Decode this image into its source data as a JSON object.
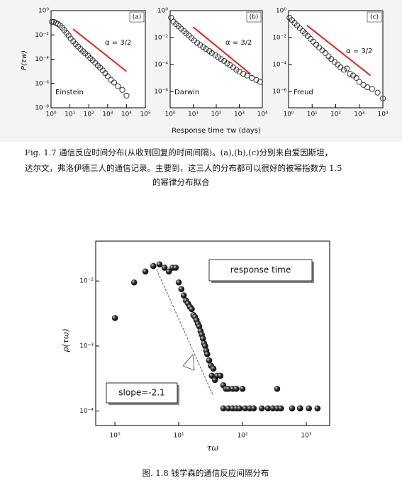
{
  "chart_data": [
    {
      "type": "scatter",
      "marker": "open-circle",
      "panel_label": "(a)",
      "name_label": "Einstein",
      "annotation": "α = 3/2",
      "x": [
        1.1,
        1.4,
        1.8,
        2.3,
        3,
        4,
        5,
        6.5,
        8.5,
        11,
        15,
        20,
        27,
        36,
        50,
        65,
        90,
        120,
        160,
        220,
        300,
        400,
        550,
        750,
        1000,
        1500,
        2200,
        3500,
        6000,
        10000
      ],
      "y": [
        0.12,
        0.12,
        0.1,
        0.08,
        0.06,
        0.04,
        0.025,
        0.015,
        0.009,
        0.005,
        0.003,
        0.0018,
        0.0011,
        0.0007,
        0.00045,
        0.0003,
        0.0002,
        0.00012,
        8e-05,
        5e-05,
        3e-05,
        2e-05,
        1.2e-05,
        7e-06,
        4e-06,
        2e-06,
        1.2e-06,
        6e-07,
        3e-07,
        1e-07
      ],
      "xlim": [
        1,
        100000
      ],
      "ylim": [
        1e-08,
        1
      ],
      "xticks": [
        {
          "value": 1,
          "label": "10⁰"
        },
        {
          "value": 10,
          "label": "10¹"
        },
        {
          "value": 100,
          "label": "10²"
        },
        {
          "value": 1000,
          "label": "10³"
        },
        {
          "value": 10000,
          "label": "10⁴"
        },
        {
          "value": 100000,
          "label": "10⁵"
        }
      ],
      "yticks": [
        {
          "value": 1,
          "label": "10⁰"
        },
        {
          "value": 0.01,
          "label": "10⁻²"
        },
        {
          "value": 0.0001,
          "label": "10⁻⁴"
        },
        {
          "value": 1e-06,
          "label": "10⁻⁶"
        },
        {
          "value": 1e-08,
          "label": "10⁻⁸"
        }
      ],
      "ref_line": {
        "x": [
          15,
          10000
        ],
        "y": [
          0.03,
          1e-05
        ],
        "color": "#e8201a"
      }
    },
    {
      "type": "scatter",
      "marker": "open-circle",
      "panel_label": "(b)",
      "name_label": "Darwin",
      "annotation": "α = 3/2",
      "x": [
        1.1,
        1.4,
        1.8,
        2.3,
        3,
        4,
        5,
        6.5,
        8.5,
        11,
        15,
        20,
        27,
        36,
        50,
        65,
        90,
        120,
        160,
        220,
        300,
        400,
        550,
        750,
        1000,
        1500,
        2200,
        3500,
        5500,
        8000
      ],
      "y": [
        0.3,
        0.15,
        0.1,
        0.07,
        0.045,
        0.03,
        0.02,
        0.014,
        0.009,
        0.006,
        0.004,
        0.0028,
        0.002,
        0.0014,
        0.001,
        0.0007,
        0.0005,
        0.00035,
        0.00025,
        0.00018,
        0.00012,
        9e-05,
        6e-05,
        4e-05,
        3e-05,
        2e-05,
        1.5e-05,
        1e-05,
        7e-06,
        5e-06
      ],
      "xlim": [
        1,
        10000
      ],
      "ylim": [
        6e-08,
        1
      ],
      "xticks": [
        {
          "value": 1,
          "label": "10⁰"
        },
        {
          "value": 10,
          "label": "10¹"
        },
        {
          "value": 100,
          "label": "10²"
        },
        {
          "value": 1000,
          "label": "10³"
        },
        {
          "value": 10000,
          "label": "10⁴"
        }
      ],
      "yticks": [
        {
          "value": 1,
          "label": "10⁰"
        },
        {
          "value": 0.01,
          "label": "10⁻²"
        },
        {
          "value": 0.0001,
          "label": "10⁻⁴"
        },
        {
          "value": 1e-06,
          "label": "10⁻⁶"
        }
      ],
      "ref_line": {
        "x": [
          10,
          3000
        ],
        "y": [
          0.06,
          2e-05
        ],
        "color": "#e8201a"
      }
    },
    {
      "type": "scatter",
      "marker": "open-circle",
      "panel_label": "(c)",
      "name_label": "Freud",
      "annotation": "α = 3/2",
      "x": [
        1.1,
        1.4,
        1.8,
        2.3,
        3,
        4,
        5,
        6.5,
        8.5,
        11,
        15,
        20,
        27,
        36,
        50,
        65,
        90,
        120,
        160,
        220,
        300,
        400,
        550,
        750,
        1000,
        1500,
        2200,
        3500,
        6000,
        10000
      ],
      "y": [
        0.3,
        0.2,
        0.12,
        0.08,
        0.05,
        0.03,
        0.02,
        0.013,
        0.008,
        0.005,
        0.003,
        0.0018,
        0.0011,
        0.0007,
        0.0004,
        0.00025,
        0.00015,
        0.0001,
        6e-05,
        4e-05,
        5e-05,
        2e-05,
        1.5e-05,
        1e-05,
        5e-06,
        3e-06,
        2e-06,
        1.5e-06,
        8e-07,
        3e-07
      ],
      "xlim": [
        1,
        10000
      ],
      "ylim": [
        6e-08,
        1
      ],
      "xticks": [
        {
          "value": 1,
          "label": "10⁰"
        },
        {
          "value": 10,
          "label": "10¹"
        },
        {
          "value": 100,
          "label": "10²"
        },
        {
          "value": 1000,
          "label": "10³"
        },
        {
          "value": 10000,
          "label": "10⁴"
        }
      ],
      "yticks": [
        {
          "value": 1,
          "label": "10⁰"
        },
        {
          "value": 0.01,
          "label": "10⁻²"
        },
        {
          "value": 0.0001,
          "label": "10⁻⁴"
        },
        {
          "value": 1e-06,
          "label": "10⁻⁶"
        }
      ],
      "ref_line": {
        "x": [
          6,
          3000
        ],
        "y": [
          0.08,
          1.5e-05
        ],
        "color": "#e8201a"
      }
    },
    {
      "type": "scatter",
      "marker": "filled-ball",
      "x_label": "τω",
      "y_label": "ρ(τω)",
      "annotations": [
        "response time",
        "slope=-2.1"
      ],
      "x": [
        1,
        2,
        3,
        4,
        5,
        6,
        7,
        8,
        9,
        10,
        11,
        12,
        13,
        14,
        15,
        16,
        17,
        18,
        19,
        20,
        21,
        22,
        23,
        24,
        25,
        26,
        27,
        28,
        30,
        32,
        33,
        35,
        37,
        40,
        45,
        50,
        55,
        60,
        70,
        80,
        100,
        50,
        60,
        70,
        80,
        90,
        110,
        130,
        150,
        200,
        250,
        300,
        350,
        400,
        600,
        800,
        1100,
        1500,
        350,
        800
      ],
      "y": [
        0.0027,
        0.0095,
        0.014,
        0.017,
        0.018,
        0.016,
        0.014,
        0.016,
        0.016,
        0.0095,
        0.0075,
        0.006,
        0.005,
        0.0045,
        0.004,
        0.0037,
        0.003,
        0.0028,
        0.0025,
        0.0022,
        0.002,
        0.0017,
        0.0015,
        0.0013,
        0.0011,
        0.001,
        0.00085,
        0.00075,
        0.0006,
        0.0005,
        0.00035,
        0.00045,
        0.0003,
        0.00035,
        0.00035,
        0.00025,
        0.00022,
        0.00022,
        0.00022,
        0.00022,
        0.00022,
        0.00011,
        0.00011,
        0.00011,
        0.00011,
        0.00011,
        0.00011,
        0.00011,
        0.00011,
        0.00011,
        0.00011,
        0.00011,
        0.00011,
        0.00011,
        0.00011,
        0.00011,
        0.00011,
        0.00011,
        0.00022,
        0.00011
      ],
      "xlim": [
        0.5,
        2330
      ],
      "ylim": [
        6e-05,
        0.041
      ],
      "xticks": [
        {
          "value": 1,
          "label": "10⁰"
        },
        {
          "value": 10,
          "label": "10¹"
        },
        {
          "value": 100,
          "label": "10²"
        },
        {
          "value": 1000,
          "label": "10³"
        }
      ],
      "yticks": [
        {
          "value": 0.0001,
          "label": "10⁻⁴"
        },
        {
          "value": 0.001,
          "label": "10⁻³"
        },
        {
          "value": 0.01,
          "label": "10⁻²"
        }
      ],
      "ref_line": {
        "x": [
          4.5,
          35
        ],
        "y": [
          0.015,
          0.00017
        ],
        "color": "#555",
        "dashed": true
      }
    }
  ],
  "figure_1_7": {
    "x_label": "Response time τw (days)",
    "y_label": "P(τw)",
    "caption": [
      "Fig. 1.7   通信反应时间分布(从收到回复的时间间隔)。(a),(b),(c)分别来自爱因斯坦，",
      "达尔文，弗洛伊德三人的通信记录。主要到，这三人的分布都可以很好的被幂指数为 1.5",
      "的幂律分布拟合"
    ]
  },
  "figure_1_8": {
    "caption": "图. 1.8   钱学森的通信反应间隔分布"
  }
}
